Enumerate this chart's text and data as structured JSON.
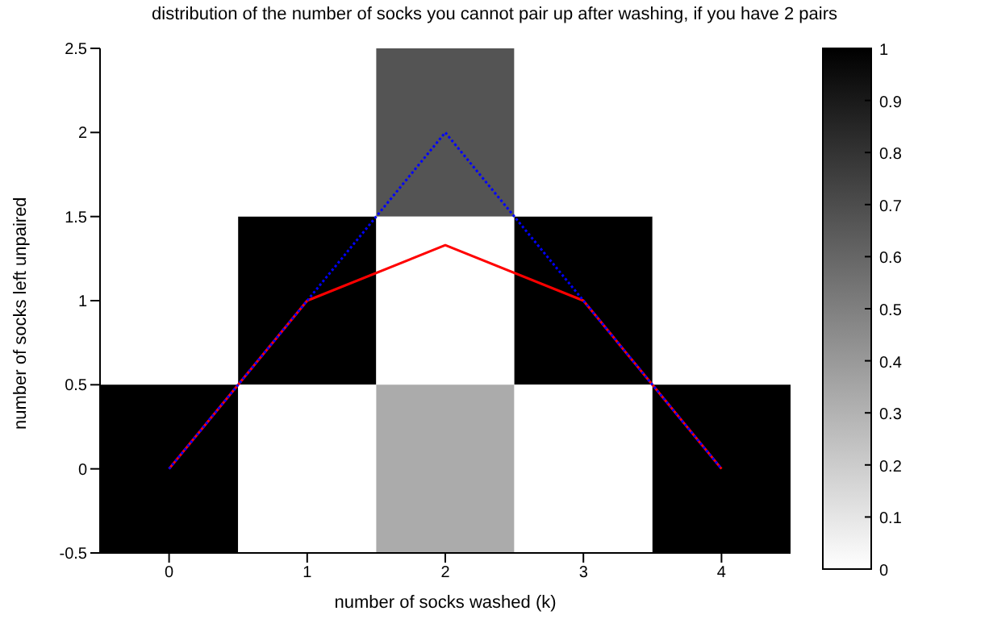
{
  "chart_data": {
    "type": "heatmap",
    "title": "distribution of the number of socks you cannot pair up after washing, if you have 2 pairs",
    "xlabel": "number of socks washed (k)",
    "ylabel": "number of socks left unpaired",
    "x": [
      0,
      1,
      2,
      3,
      4
    ],
    "cells": [
      [
        0,
        0,
        0.67,
        0,
        0
      ],
      [
        0,
        1,
        0,
        1,
        0
      ],
      [
        1,
        0,
        0.33,
        0,
        1
      ]
    ],
    "clim": [
      0,
      1
    ],
    "cticks": [
      0,
      0.1,
      0.2,
      0.3,
      0.4,
      0.5,
      0.6,
      0.7,
      0.8,
      0.9,
      1
    ],
    "xlim": [
      -0.5,
      4.5
    ],
    "xticks": [
      0,
      1,
      2,
      3,
      4
    ],
    "ylim": [
      -0.5,
      2.5
    ],
    "yticks": [
      -0.5,
      0,
      0.5,
      1,
      1.5,
      2,
      2.5
    ],
    "series": [
      {
        "type": "line",
        "color": "#ff0000",
        "line_style": "solid",
        "x": [
          0,
          1,
          2,
          3,
          4
        ],
        "values": [
          0,
          1,
          1.33,
          1,
          0
        ]
      },
      {
        "type": "line",
        "color": "#0000ff",
        "line_style": "dotted",
        "x": [
          0,
          1,
          2,
          3,
          4
        ],
        "values": [
          0,
          1,
          2,
          1,
          0
        ]
      }
    ],
    "marker": "none"
  }
}
